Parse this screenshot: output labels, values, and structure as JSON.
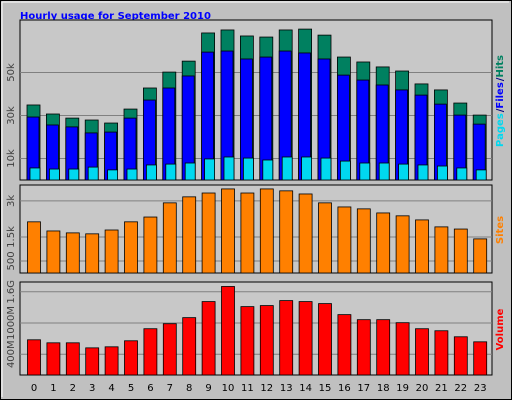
{
  "chart_data": [
    {
      "type": "bar",
      "title": "Hourly usage for September 2010",
      "legend_separator": "/",
      "ylim": [
        0,
        73500
      ],
      "yticks": [
        {
          "value": 10000,
          "label": "10k"
        },
        {
          "value": 30000,
          "label": "30k"
        },
        {
          "value": 50000,
          "label": "50k"
        }
      ],
      "grid": true,
      "series": [
        {
          "name": "Hits",
          "color": "#008060",
          "values": [
            34900,
            30700,
            28800,
            27900,
            26500,
            33000,
            42800,
            50200,
            55300,
            68400,
            69800,
            67000,
            66500,
            69800,
            70200,
            67400,
            57200,
            54900,
            52600,
            50700,
            44700,
            41900,
            35800,
            30200
          ]
        },
        {
          "name": "Files",
          "color": "#0000ff",
          "values": [
            29300,
            25600,
            24700,
            21900,
            22300,
            28800,
            37200,
            42800,
            48400,
            59500,
            60000,
            56300,
            57200,
            60000,
            59100,
            56300,
            48800,
            46500,
            44200,
            41900,
            39500,
            35300,
            30200,
            26000
          ]
        },
        {
          "name": "Pages",
          "color": "#00d8f0",
          "values": [
            5600,
            5100,
            5100,
            6000,
            4700,
            5100,
            7000,
            7400,
            7900,
            9800,
            10700,
            10200,
            9300,
            10700,
            10700,
            10200,
            8800,
            7900,
            7900,
            7400,
            7000,
            6500,
            5600,
            4700
          ]
        }
      ]
    },
    {
      "type": "bar",
      "ylim": [
        0,
        3580
      ],
      "yticks": [
        500,
        {
          "value": 1500,
          "label": "1.5k"
        },
        {
          "value": 3000,
          "label": "3k"
        }
      ],
      "grid": true,
      "series": [
        {
          "name": "Sites",
          "color": "#ff8000",
          "values": [
            2130,
            1750,
            1670,
            1630,
            1790,
            2130,
            2330,
            2920,
            3170,
            3330,
            3500,
            3330,
            3500,
            3420,
            3290,
            2920,
            2750,
            2670,
            2500,
            2380,
            2210,
            1920,
            1830,
            1420
          ]
        }
      ]
    },
    {
      "type": "bar",
      "ylim": [
        0,
        1750
      ],
      "yticks": [
        {
          "value": 400,
          "label": "400M"
        },
        {
          "value": 1000,
          "label": "1000M"
        },
        {
          "value": 1600,
          "label": "1.6G"
        }
      ],
      "grid": true,
      "categories": [
        "0",
        "1",
        "2",
        "3",
        "4",
        "5",
        "6",
        "7",
        "8",
        "9",
        "10",
        "11",
        "12",
        "13",
        "14",
        "15",
        "16",
        "17",
        "18",
        "19",
        "20",
        "21",
        "22",
        "23"
      ],
      "series": [
        {
          "name": "Volume",
          "color": "#ff0000",
          "values": [
            677,
            619,
            619,
            522,
            542,
            658,
            890,
            986,
            1103,
            1412,
            1702,
            1315,
            1335,
            1431,
            1412,
            1373,
            1161,
            1064,
            1064,
            1006,
            890,
            851,
            735,
            638
          ]
        }
      ]
    }
  ]
}
